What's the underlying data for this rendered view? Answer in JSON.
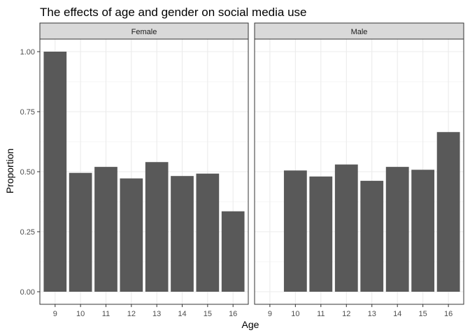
{
  "chart_data": {
    "type": "bar",
    "title": "The effects of age and gender on social media use",
    "xlabel": "Age",
    "ylabel": "Proportion",
    "ylim": [
      0,
      1.1
    ],
    "y_ticks": [
      "0.00",
      "0.25",
      "0.50",
      "0.75",
      "1.00"
    ],
    "categories": [
      "9",
      "10",
      "11",
      "12",
      "13",
      "14",
      "15",
      "16"
    ],
    "grid": true,
    "bar_color": "#595959",
    "panel_border_color": "#333333",
    "strip_fill": "#d9d9d9",
    "grid_color": "#ebebeb",
    "facets": [
      {
        "name": "Female",
        "values": [
          1.0,
          0.495,
          0.52,
          0.472,
          0.54,
          0.482,
          0.492,
          0.335
        ]
      },
      {
        "name": "Male",
        "values": [
          0.0,
          0.505,
          0.48,
          0.53,
          0.462,
          0.52,
          0.508,
          0.665
        ]
      }
    ]
  }
}
